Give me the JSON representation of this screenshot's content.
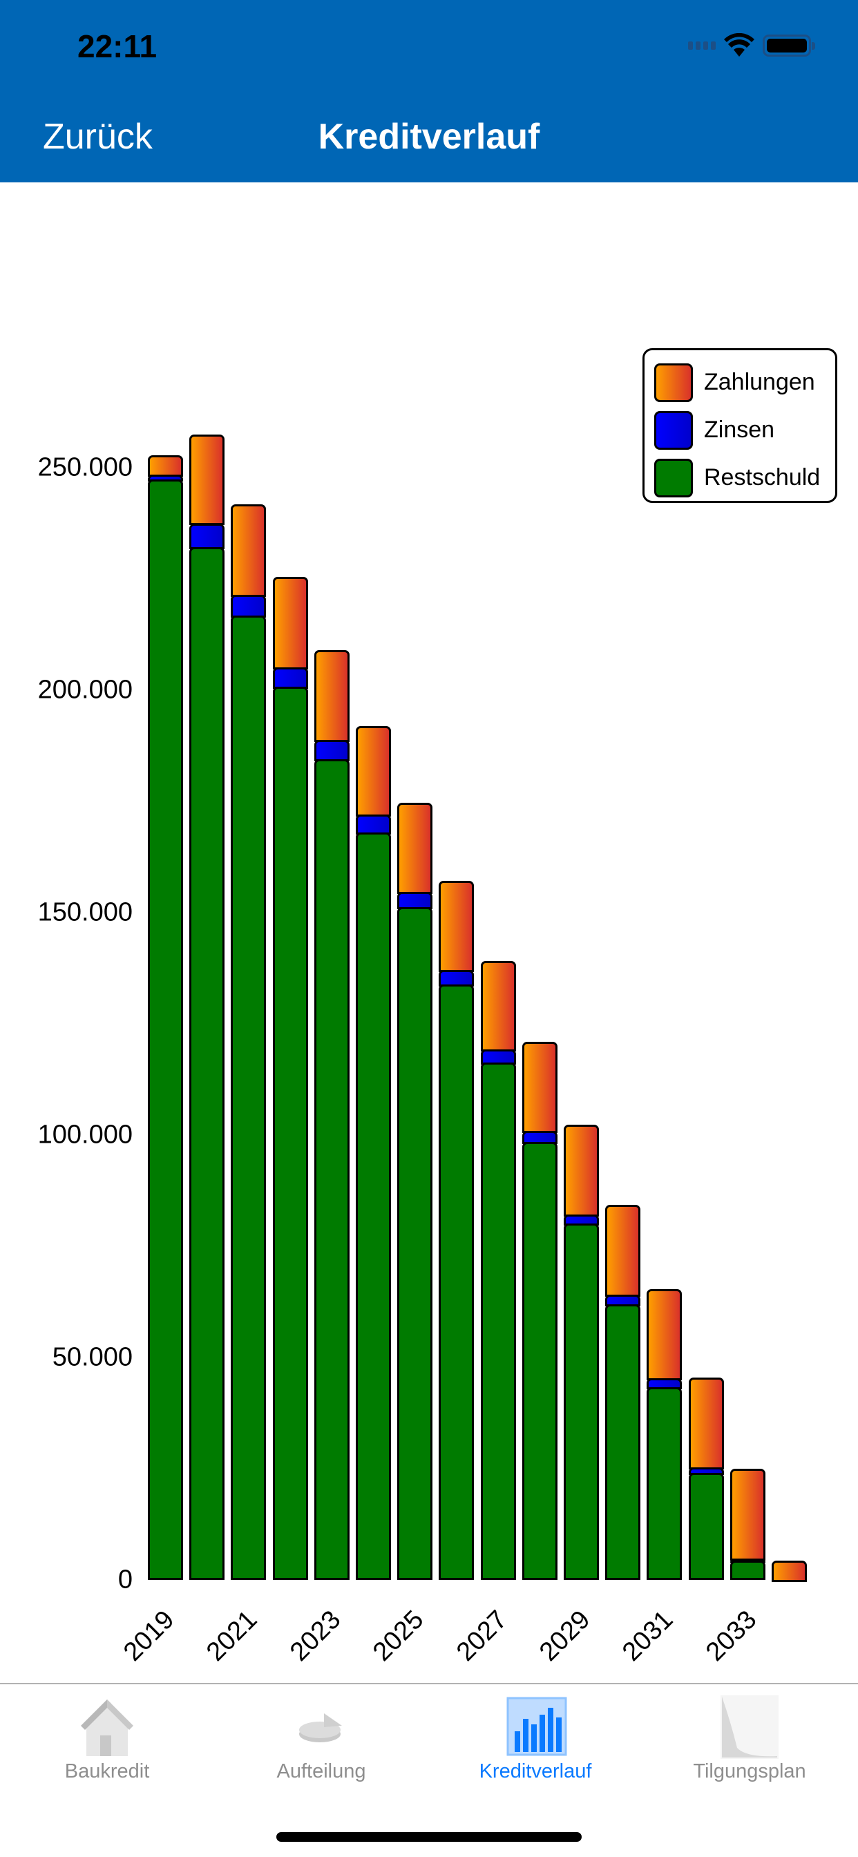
{
  "status_bar": {
    "time": "22:11"
  },
  "nav": {
    "back_label": "Zurück",
    "title": "Kreditverlauf"
  },
  "legend": [
    {
      "label": "Zahlungen",
      "color": "#ff9e00"
    },
    {
      "label": "Zinsen",
      "color": "#0000ff"
    },
    {
      "label": "Restschuld",
      "color": "#007b00"
    }
  ],
  "y_axis": [
    "0",
    "50.000",
    "100.000",
    "150.000",
    "200.000",
    "250.000"
  ],
  "x_axis_labels": [
    "2019",
    "2021",
    "2023",
    "2025",
    "2027",
    "2029",
    "2031",
    "2033"
  ],
  "tabs": [
    {
      "label": "Baukredit",
      "icon": "house-icon",
      "active": false
    },
    {
      "label": "Aufteilung",
      "icon": "pie-chart-icon",
      "active": false
    },
    {
      "label": "Kreditverlauf",
      "icon": "bar-chart-icon",
      "active": true
    },
    {
      "label": "Tilgungsplan",
      "icon": "area-chart-icon",
      "active": false
    }
  ],
  "chart_data": {
    "type": "bar",
    "stacked": true,
    "title": "Kreditverlauf",
    "xlabel": "",
    "ylabel": "",
    "ylim": [
      0,
      270000
    ],
    "y_ticks": [
      0,
      50000,
      100000,
      150000,
      200000,
      250000
    ],
    "y_tick_labels": [
      "0",
      "50.000",
      "100.000",
      "150.000",
      "200.000",
      "250.000"
    ],
    "x_tick_labels": [
      "2019",
      "2021",
      "2023",
      "2025",
      "2027",
      "2029",
      "2031",
      "2033"
    ],
    "grid": false,
    "legend_position": "top-right",
    "categories": [
      "2019",
      "2020",
      "2021",
      "2022",
      "2023",
      "2024",
      "2025",
      "2026",
      "2027",
      "2028",
      "2029",
      "2030",
      "2031",
      "2032",
      "2033",
      "2034"
    ],
    "series": [
      {
        "name": "Restschuld",
        "color": "#007b00",
        "values": [
          247300,
          232200,
          216700,
          200700,
          184500,
          168000,
          151200,
          133900,
          116300,
          98500,
          80100,
          62000,
          43400,
          24000,
          4300,
          0
        ]
      },
      {
        "name": "Zinsen",
        "color": "#0000ff",
        "values": [
          1100,
          5300,
          4800,
          4500,
          4300,
          4000,
          3500,
          3200,
          2900,
          2400,
          2100,
          2100,
          1900,
          1300,
          500,
          0
        ]
      },
      {
        "name": "Zahlungen",
        "color": "#ff9e00",
        "values": [
          4400,
          20000,
          20200,
          20200,
          20200,
          20000,
          20000,
          20000,
          20000,
          20000,
          20200,
          20200,
          20000,
          20200,
          20200,
          4300
        ]
      }
    ]
  }
}
